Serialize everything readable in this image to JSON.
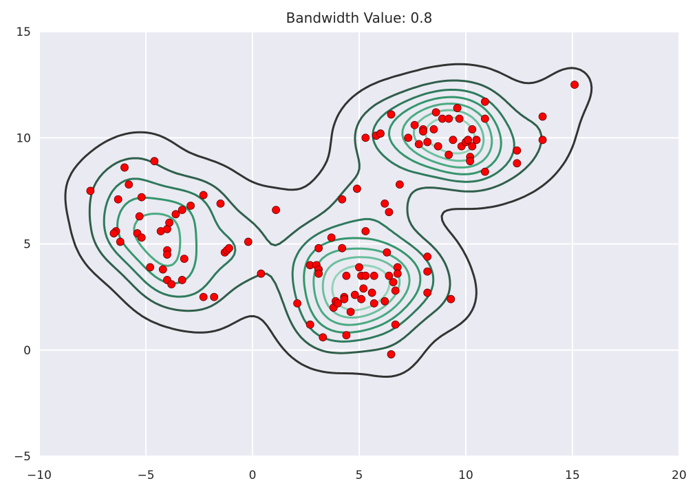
{
  "chart_data": {
    "type": "scatter",
    "title": "Bandwidth Value: 0.8",
    "xlabel": "",
    "ylabel": "",
    "xlim": [
      -10,
      20
    ],
    "ylim": [
      -5,
      15
    ],
    "xticks": [
      -10,
      -5,
      0,
      5,
      10,
      15,
      20
    ],
    "yticks": [
      -5,
      0,
      5,
      10,
      15
    ],
    "xtick_labels": [
      "−10",
      "−5",
      "0",
      "5",
      "10",
      "15",
      "20"
    ],
    "ytick_labels": [
      "−5",
      "0",
      "5",
      "10",
      "15"
    ],
    "grid": true,
    "background_color": "#EAEAF2",
    "point_color": "#FF0000",
    "contour_colors": [
      "#333333",
      "#2F5F4A",
      "#2E7A5C",
      "#34956C",
      "#4AAA82",
      "#6CBF9C",
      "#92D3B7"
    ],
    "contour_type": "kde-density",
    "points": [
      [
        -7.6,
        7.5
      ],
      [
        -6.0,
        8.6
      ],
      [
        -5.8,
        7.8
      ],
      [
        -6.3,
        7.1
      ],
      [
        -4.6,
        8.9
      ],
      [
        -5.2,
        7.2
      ],
      [
        -5.3,
        6.3
      ],
      [
        -6.4,
        5.6
      ],
      [
        -6.5,
        5.5
      ],
      [
        -6.2,
        5.1
      ],
      [
        -5.4,
        5.5
      ],
      [
        -5.2,
        5.3
      ],
      [
        -4.3,
        5.6
      ],
      [
        -4.0,
        5.7
      ],
      [
        -3.9,
        6.0
      ],
      [
        -3.6,
        6.4
      ],
      [
        -3.3,
        6.6
      ],
      [
        -2.9,
        6.8
      ],
      [
        -2.3,
        7.3
      ],
      [
        -1.5,
        6.9
      ],
      [
        -4.0,
        4.7
      ],
      [
        -4.0,
        4.5
      ],
      [
        -3.2,
        4.3
      ],
      [
        -4.8,
        3.9
      ],
      [
        -4.2,
        3.8
      ],
      [
        -4.0,
        3.3
      ],
      [
        -3.8,
        3.1
      ],
      [
        -3.3,
        3.3
      ],
      [
        -2.3,
        2.5
      ],
      [
        -1.8,
        2.5
      ],
      [
        -1.3,
        4.6
      ],
      [
        -1.2,
        4.7
      ],
      [
        -1.1,
        4.8
      ],
      [
        -0.2,
        5.1
      ],
      [
        0.4,
        3.6
      ],
      [
        1.1,
        6.6
      ],
      [
        2.1,
        2.2
      ],
      [
        2.7,
        1.2
      ],
      [
        2.7,
        4.0
      ],
      [
        3.0,
        4.0
      ],
      [
        3.1,
        3.8
      ],
      [
        3.1,
        3.6
      ],
      [
        3.1,
        4.8
      ],
      [
        3.3,
        0.6
      ],
      [
        3.7,
        5.3
      ],
      [
        3.8,
        2.0
      ],
      [
        3.9,
        2.3
      ],
      [
        4.0,
        2.2
      ],
      [
        4.2,
        4.8
      ],
      [
        4.3,
        2.5
      ],
      [
        4.3,
        2.4
      ],
      [
        4.4,
        3.5
      ],
      [
        4.4,
        0.7
      ],
      [
        4.2,
        7.1
      ],
      [
        4.6,
        1.8
      ],
      [
        4.8,
        2.6
      ],
      [
        4.9,
        7.6
      ],
      [
        5.0,
        3.9
      ],
      [
        5.1,
        3.5
      ],
      [
        5.1,
        2.4
      ],
      [
        5.2,
        2.9
      ],
      [
        5.3,
        5.6
      ],
      [
        5.3,
        10.0
      ],
      [
        5.3,
        3.5
      ],
      [
        5.6,
        2.7
      ],
      [
        5.7,
        2.2
      ],
      [
        5.7,
        3.5
      ],
      [
        5.8,
        10.1
      ],
      [
        6.0,
        10.2
      ],
      [
        6.2,
        2.3
      ],
      [
        6.2,
        6.9
      ],
      [
        6.3,
        4.6
      ],
      [
        6.4,
        3.5
      ],
      [
        6.4,
        6.5
      ],
      [
        6.5,
        -0.2
      ],
      [
        6.5,
        11.1
      ],
      [
        6.6,
        3.2
      ],
      [
        6.7,
        1.2
      ],
      [
        6.8,
        3.9
      ],
      [
        6.8,
        3.6
      ],
      [
        6.7,
        2.8
      ],
      [
        6.9,
        7.8
      ],
      [
        7.3,
        10.0
      ],
      [
        7.6,
        10.6
      ],
      [
        7.8,
        9.7
      ],
      [
        8.0,
        10.4
      ],
      [
        8.0,
        10.3
      ],
      [
        8.2,
        3.7
      ],
      [
        8.2,
        4.4
      ],
      [
        8.2,
        2.7
      ],
      [
        8.2,
        9.8
      ],
      [
        8.5,
        10.4
      ],
      [
        8.6,
        11.2
      ],
      [
        8.9,
        10.9
      ],
      [
        8.7,
        9.6
      ],
      [
        9.2,
        9.2
      ],
      [
        9.2,
        10.9
      ],
      [
        9.3,
        2.4
      ],
      [
        9.4,
        9.9
      ],
      [
        9.6,
        11.4
      ],
      [
        9.7,
        10.9
      ],
      [
        9.8,
        9.6
      ],
      [
        10.0,
        9.8
      ],
      [
        10.1,
        9.9
      ],
      [
        10.2,
        9.1
      ],
      [
        10.2,
        8.9
      ],
      [
        10.3,
        9.6
      ],
      [
        10.3,
        10.4
      ],
      [
        10.5,
        9.9
      ],
      [
        10.9,
        10.9
      ],
      [
        10.9,
        11.7
      ],
      [
        10.9,
        8.4
      ],
      [
        12.4,
        9.4
      ],
      [
        12.4,
        8.8
      ],
      [
        13.6,
        11.0
      ],
      [
        13.6,
        9.9
      ],
      [
        15.1,
        12.5
      ]
    ]
  }
}
